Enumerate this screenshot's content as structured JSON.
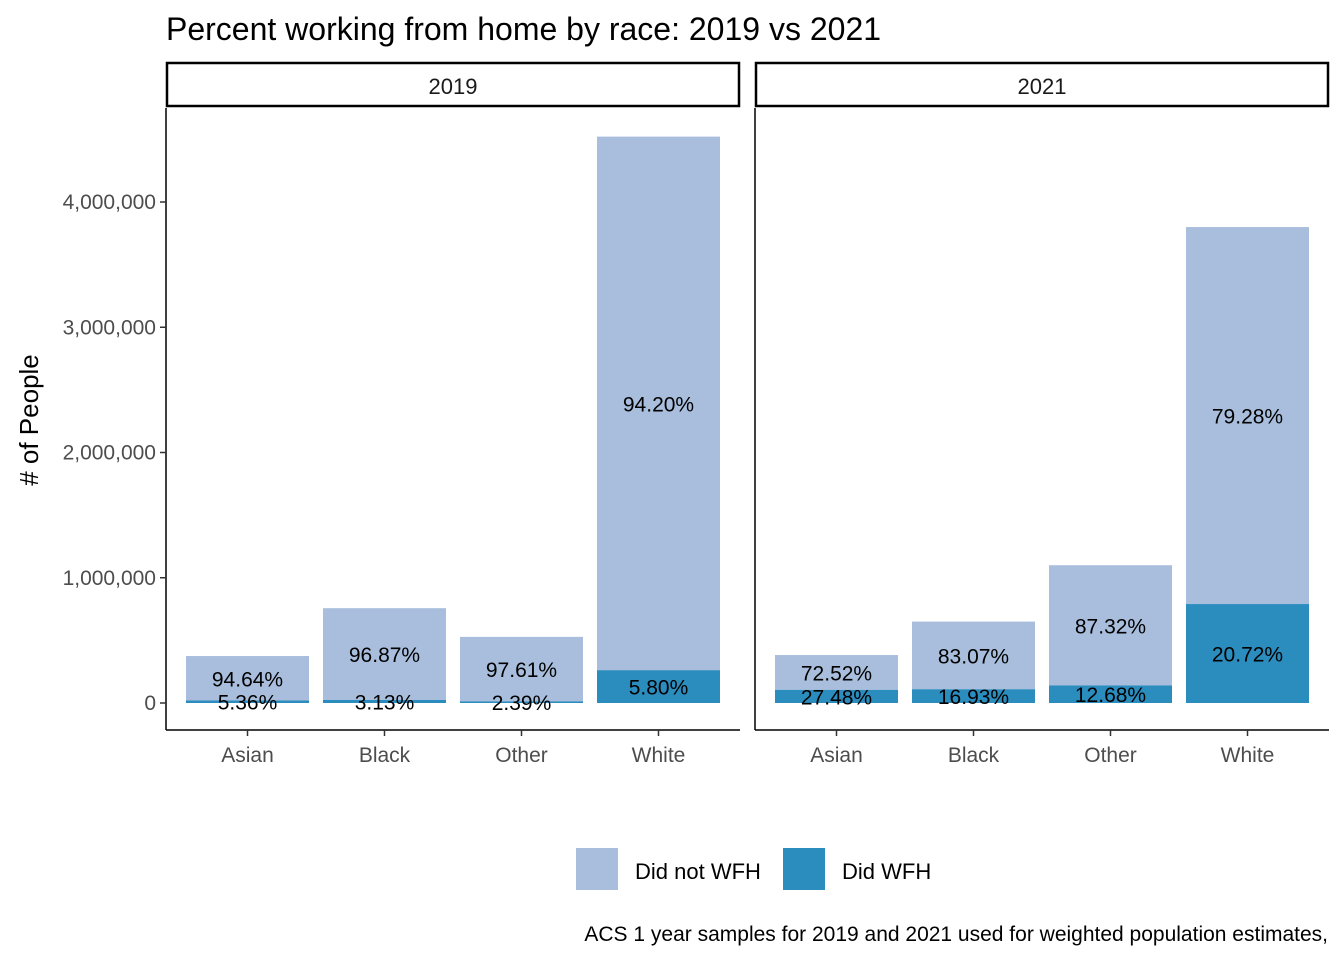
{
  "chart_data": {
    "type": "bar",
    "stacked": true,
    "title": "Percent working from home by race: 2019 vs 2021",
    "xlabel": "",
    "ylabel": "# of People",
    "ylim": [
      -200000,
      4750000
    ],
    "y_ticks": [
      0,
      1000000,
      2000000,
      3000000,
      4000000
    ],
    "y_tick_labels": [
      "0",
      "1,000,000",
      "2,000,000",
      "3,000,000",
      "4,000,000"
    ],
    "categories": [
      "Asian",
      "Black",
      "Other",
      "White"
    ],
    "colors": {
      "Did not WFH": "#a8bedc",
      "Did WFH": "#2b8cbe"
    },
    "legend": {
      "position": "bottom",
      "entries": [
        "Did not WFH",
        "Did WFH"
      ]
    },
    "caption": "ACS 1 year samples for 2019 and 2021 used for weighted population estimates,",
    "facets": [
      {
        "label": "2019",
        "series": [
          {
            "name": "Did not WFH",
            "values": [
              355000,
              733000,
              515000,
              4260000
            ],
            "labels": [
              "94.64%",
              "96.87%",
              "97.61%",
              "94.20%"
            ]
          },
          {
            "name": "Did WFH",
            "values": [
              20000,
              24000,
              13000,
              262000
            ],
            "labels": [
              "5.36%",
              "3.13%",
              "2.39%",
              "5.80%"
            ]
          }
        ]
      },
      {
        "label": "2021",
        "series": [
          {
            "name": "Did not WFH",
            "values": [
              278000,
              540000,
              960000,
              3010000
            ],
            "labels": [
              "72.52%",
              "83.07%",
              "87.32%",
              "79.28%"
            ]
          },
          {
            "name": "Did WFH",
            "values": [
              105000,
              110000,
              140000,
              790000
            ],
            "labels": [
              "27.48%",
              "16.93%",
              "12.68%",
              "20.72%"
            ]
          }
        ]
      }
    ]
  }
}
